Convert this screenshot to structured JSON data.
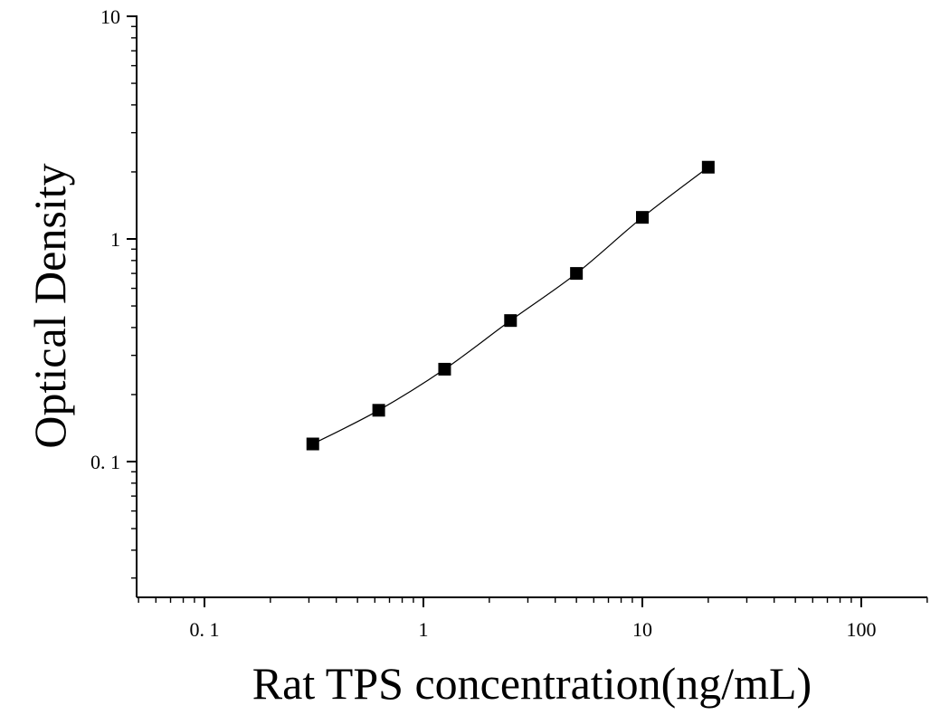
{
  "chart_data": {
    "type": "scatter",
    "title": "",
    "xlabel": "Rat TPS concentration(ng/mL)",
    "ylabel": "Optical Density",
    "xscale": "log",
    "yscale": "log",
    "xlim": [
      0.05,
      200
    ],
    "ylim": [
      0.03,
      10
    ],
    "grid": false,
    "legend": "none",
    "x_ticks": [
      {
        "value": 0.1,
        "label": "0. 1"
      },
      {
        "value": 1,
        "label": "1"
      },
      {
        "value": 10,
        "label": "10"
      },
      {
        "value": 100,
        "label": "100"
      }
    ],
    "y_ticks": [
      {
        "value": 0.1,
        "label": "0. 1"
      },
      {
        "value": 1,
        "label": "1"
      },
      {
        "value": 10,
        "label": "10"
      }
    ],
    "series": [
      {
        "marker": "square",
        "color": "#000000",
        "fit_line": true,
        "points": [
          {
            "x": 0.3125,
            "y": 0.12
          },
          {
            "x": 0.625,
            "y": 0.17
          },
          {
            "x": 1.25,
            "y": 0.26
          },
          {
            "x": 2.5,
            "y": 0.43
          },
          {
            "x": 5,
            "y": 0.7
          },
          {
            "x": 10,
            "y": 1.25
          },
          {
            "x": 20,
            "y": 2.1
          }
        ]
      }
    ]
  }
}
